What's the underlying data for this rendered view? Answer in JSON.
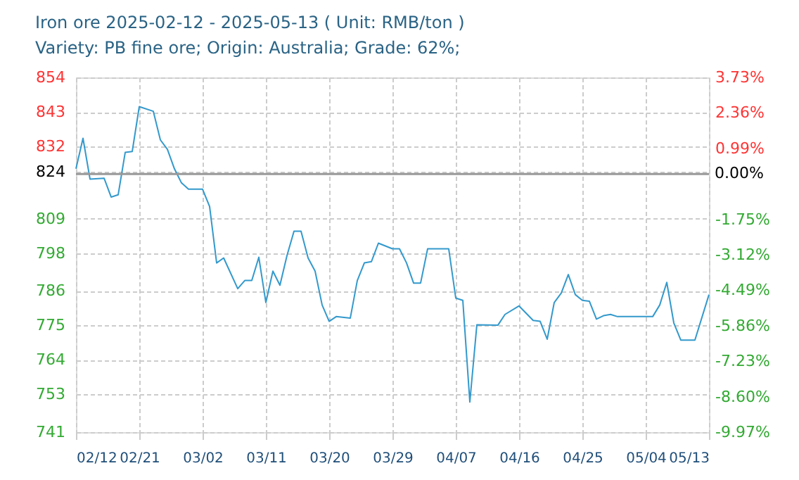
{
  "chart_data": {
    "type": "line",
    "title": "Iron ore 2025-02-12 - 2025-05-13     ( Unit: RMB/ton )",
    "subtitle": "Variety: PB  fine ore; Origin: Australia; Grade: 62%;",
    "x": [
      "2025-02-12",
      "2025-02-13",
      "2025-02-14",
      "2025-02-16",
      "2025-02-17",
      "2025-02-18",
      "2025-02-19",
      "2025-02-20",
      "2025-02-21",
      "2025-02-23",
      "2025-02-24",
      "2025-02-25",
      "2025-02-26",
      "2025-02-27",
      "2025-02-28",
      "2025-03-02",
      "2025-03-03",
      "2025-03-04",
      "2025-03-05",
      "2025-03-07",
      "2025-03-08",
      "2025-03-09",
      "2025-03-10",
      "2025-03-11",
      "2025-03-12",
      "2025-03-13",
      "2025-03-14",
      "2025-03-15",
      "2025-03-16",
      "2025-03-17",
      "2025-03-18",
      "2025-03-19",
      "2025-03-20",
      "2025-03-21",
      "2025-03-23",
      "2025-03-24",
      "2025-03-25",
      "2025-03-26",
      "2025-03-27",
      "2025-03-29",
      "2025-03-30",
      "2025-03-31",
      "2025-04-01",
      "2025-04-02",
      "2025-04-03",
      "2025-04-06",
      "2025-04-07",
      "2025-04-08",
      "2025-04-09",
      "2025-04-10",
      "2025-04-13",
      "2025-04-14",
      "2025-04-16",
      "2025-04-18",
      "2025-04-19",
      "2025-04-20",
      "2025-04-21",
      "2025-04-22",
      "2025-04-23",
      "2025-04-24",
      "2025-04-25",
      "2025-04-26",
      "2025-04-27",
      "2025-04-28",
      "2025-04-29",
      "2025-04-30",
      "2025-05-05",
      "2025-05-06",
      "2025-05-07",
      "2025-05-08",
      "2025-05-09",
      "2025-05-11",
      "2025-05-13"
    ],
    "series": [
      {
        "color": "#3399cc",
        "values": [
          824.9,
          834.6,
          821.6,
          821.9,
          815.9,
          816.6,
          830.1,
          830.4,
          844.7,
          843.2,
          834.1,
          831.1,
          824.9,
          820.4,
          818.4,
          818.4,
          812.9,
          794.9,
          796.5,
          786.7,
          789.3,
          789.3,
          796.7,
          782.3,
          792.3,
          787.8,
          797.2,
          805.0,
          805.0,
          796.5,
          792.3,
          781.5,
          776.3,
          777.8,
          777.3,
          789.3,
          794.9,
          795.3,
          801.2,
          799.4,
          799.4,
          794.9,
          788.5,
          788.5,
          799.4,
          799.4,
          783.7,
          783.0,
          750.6,
          775.2,
          775.1,
          778.5,
          781.2,
          776.6,
          776.3,
          770.6,
          782.3,
          785.3,
          791.2,
          784.8,
          783.0,
          782.7,
          777.0,
          778.1,
          778.5,
          777.8,
          777.8,
          781.5,
          788.7,
          775.8,
          770.3,
          770.3,
          784.8
        ]
      }
    ],
    "xlim": [
      "2025-02-12",
      "2025-05-13"
    ],
    "xticks": [
      {
        "value": "2025-02-12",
        "label": "02/12"
      },
      {
        "value": "2025-02-21",
        "label": "02/21"
      },
      {
        "value": "2025-03-02",
        "label": "03/02"
      },
      {
        "value": "2025-03-11",
        "label": "03/11"
      },
      {
        "value": "2025-03-20",
        "label": "03/20"
      },
      {
        "value": "2025-03-29",
        "label": "03/29"
      },
      {
        "value": "2025-04-07",
        "label": "04/07"
      },
      {
        "value": "2025-04-16",
        "label": "04/16"
      },
      {
        "value": "2025-04-25",
        "label": "04/25"
      },
      {
        "value": "2025-05-04",
        "label": "05/04"
      },
      {
        "value": "2025-05-13",
        "label": "05/13"
      }
    ],
    "ylim": [
      741,
      854
    ],
    "yticks": [
      741,
      753,
      764,
      775,
      786,
      798,
      809,
      824,
      832,
      843,
      854
    ],
    "y2lim": [
      -9.97,
      3.73
    ],
    "y2ticks": [
      {
        "value": -9.97,
        "label": "-9.97%"
      },
      {
        "value": -8.6,
        "label": "-8.60%"
      },
      {
        "value": -7.23,
        "label": "-7.23%"
      },
      {
        "value": -5.86,
        "label": "-5.86%"
      },
      {
        "value": -4.49,
        "label": "-4.49%"
      },
      {
        "value": -3.12,
        "label": "-3.12%"
      },
      {
        "value": -1.75,
        "label": "-1.75%"
      },
      {
        "value": 0.99,
        "label": "0.99%"
      },
      {
        "value": 2.36,
        "label": "2.36%"
      },
      {
        "value": 3.73,
        "label": "3.73%"
      }
    ],
    "ref_lines": [
      {
        "axis": "y2",
        "value": 0,
        "label": "0.00%",
        "color": "#999999"
      }
    ],
    "grid": true,
    "marker": "none",
    "line_style": "solid"
  }
}
